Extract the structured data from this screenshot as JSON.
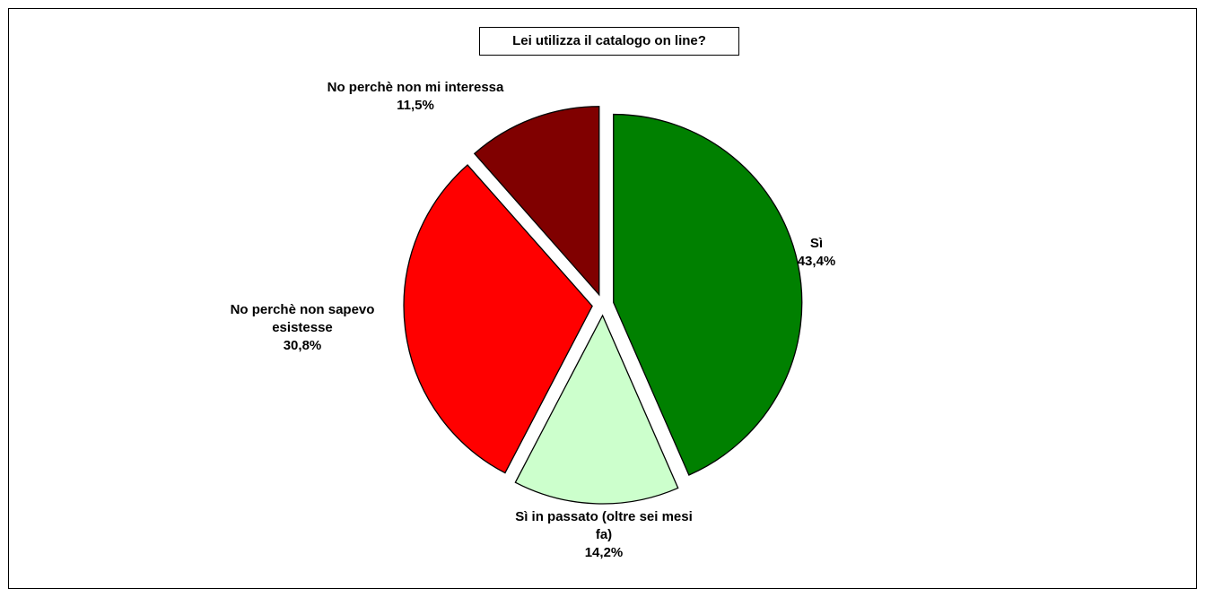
{
  "chart_data": {
    "type": "pie",
    "title": "Lei utilizza il catalogo on line?",
    "slices": [
      {
        "label": "Sì",
        "label_lines": [
          "Sì"
        ],
        "value_label": "43,4%",
        "value": 43.4,
        "color": "#008000"
      },
      {
        "label": "Sì in passato (oltre sei mesi fa)",
        "label_lines": [
          "Sì in passato (oltre sei mesi",
          "fa)"
        ],
        "value_label": "14,2%",
        "value": 14.2,
        "color": "#CCFFCC"
      },
      {
        "label": "No perchè non sapevo esistesse",
        "label_lines": [
          "No perchè non sapevo",
          "esistesse"
        ],
        "value_label": "30,8%",
        "value": 30.8,
        "color": "#FF0000"
      },
      {
        "label": "No perchè non mi interessa",
        "label_lines": [
          "No perchè non mi interessa"
        ],
        "value_label": "11,5%",
        "value": 11.5,
        "color": "#800000"
      }
    ],
    "start_angle": "12 o'clock",
    "direction": "clockwise",
    "exploded": true,
    "legend": "none"
  }
}
